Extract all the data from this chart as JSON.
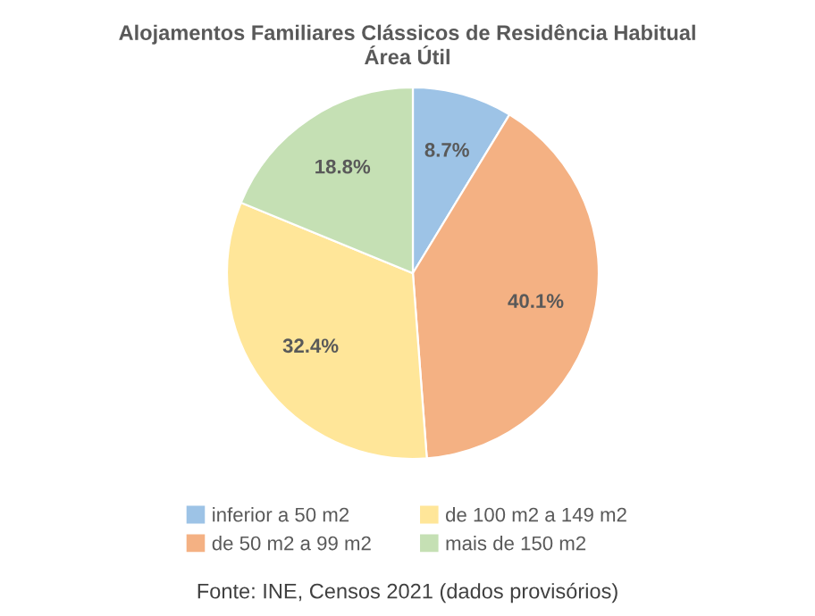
{
  "chart_data": {
    "type": "pie",
    "title": "Alojamentos Familiares Clássicos de Residência Habitual\nÁrea Útil",
    "categories": [
      "inferior a 50 m2",
      "de 50 m2 a 99 m2",
      "de 100 m2 a 149 m2",
      "mais de 150 m2"
    ],
    "values": [
      8.7,
      40.1,
      32.4,
      18.8
    ],
    "colors": [
      "#9dc3e6",
      "#f4b183",
      "#ffe699",
      "#c5e0b4"
    ],
    "value_labels": [
      "8.7%",
      "40.1%",
      "32.4%",
      "18.8%"
    ],
    "legend": "bottom",
    "annotations": [
      "Fonte: INE, Censos 2021 (dados provisórios)"
    ]
  }
}
